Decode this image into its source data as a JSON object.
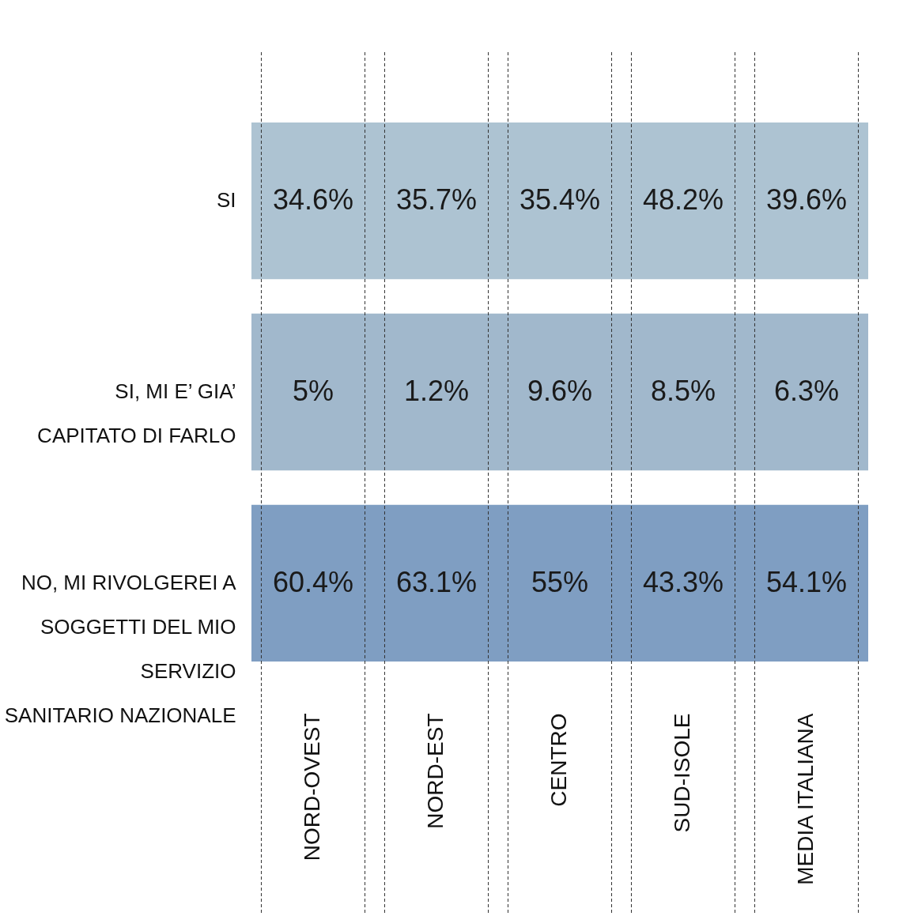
{
  "chart_data": {
    "type": "heatmap",
    "categories": [
      "NORD-OVEST",
      "NORD-EST",
      "CENTRO",
      "SUD-ISOLE",
      "MEDIA ITALIANA"
    ],
    "y_categories": [
      "SI",
      "SI, MI E’ GIA’\nCAPITATO DI FARLO",
      "NO, MI RIVOLGEREI A\nSOGGETTI DEL MIO\nSERVIZIO\nSANITARIO NAZIONALE"
    ],
    "cells": [
      [
        34.6,
        35.7,
        35.4,
        48.2,
        39.6
      ],
      [
        5,
        1.2,
        9.6,
        8.5,
        6.3
      ],
      [
        60.4,
        63.1,
        55,
        43.3,
        54.1
      ]
    ],
    "cell_labels": [
      [
        "34.6%",
        "35.7%",
        "35.4%",
        "48.2%",
        "39.6%"
      ],
      [
        "5%",
        "1.2%",
        "9.6%",
        "8.5%",
        "6.3%"
      ],
      [
        "60.4%",
        "63.1%",
        "55%",
        "43.3%",
        "54.1%"
      ]
    ],
    "colors": [
      "#adc3d2",
      "#a1b8cc",
      "#7f9ec2"
    ]
  }
}
